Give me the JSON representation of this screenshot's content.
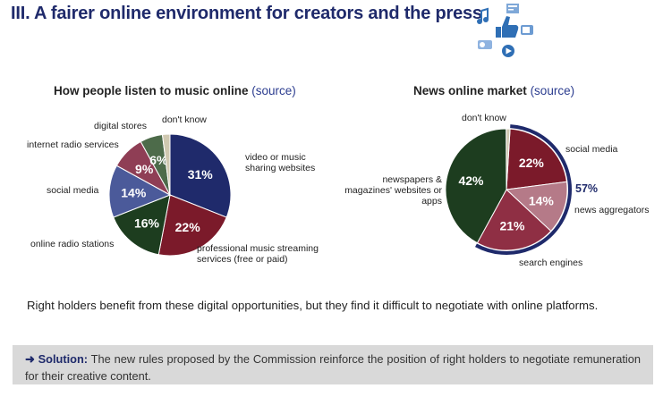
{
  "page": {
    "title": "III. A fairer online environment for creators and the press",
    "statement": "Right holders benefit from these digital opportunities, but they find it difficult to negotiate with online platforms.",
    "solution_label": "➜ Solution:",
    "solution_text": "The new rules proposed by the Commission reinforce the position of right holders to negotiate remuneration for their creative content."
  },
  "charts": [
    {
      "title": "How people listen to music online",
      "source_label": "(source)",
      "type": "pie",
      "slices": [
        {
          "label": "video or music sharing websites",
          "value": 31,
          "color": "#1f2a6b"
        },
        {
          "label": "professional music streaming services (free or paid)",
          "value": 22,
          "color": "#7b1a2a"
        },
        {
          "label": "online radio stations",
          "value": 16,
          "color": "#1d3d1f"
        },
        {
          "label": "social media",
          "value": 14,
          "color": "#4b5a9a"
        },
        {
          "label": "internet radio services",
          "value": 9,
          "color": "#8f3e55"
        },
        {
          "label": "digital stores",
          "value": 6,
          "color": "#4d6b4a"
        },
        {
          "label": "don't know",
          "value": 2,
          "color": "#cfc8b0"
        }
      ]
    },
    {
      "title": "News online market",
      "source_label": "(source)",
      "type": "pie",
      "slices": [
        {
          "label": "social media",
          "value": 22,
          "color": "#7b1a2a"
        },
        {
          "label": "news aggregators",
          "value": 14,
          "color": "#b57a88"
        },
        {
          "label": "search engines",
          "value": 21,
          "color": "#8f2f44"
        },
        {
          "label": "newspapers & magazines' websites or apps",
          "value": 42,
          "color": "#1d3d1f"
        },
        {
          "label": "don't know",
          "value": 1,
          "color": "#cfc8b0"
        }
      ],
      "group_total_label": "57%"
    }
  ],
  "colors": {
    "title": "#1f2a6b",
    "accent": "#1f2a6b",
    "box": "#d9d9d9"
  },
  "icons": [
    "music-note-icon",
    "thumbs-up-icon",
    "newspaper-icon",
    "radio-icon",
    "tv-icon",
    "play-icon"
  ]
}
